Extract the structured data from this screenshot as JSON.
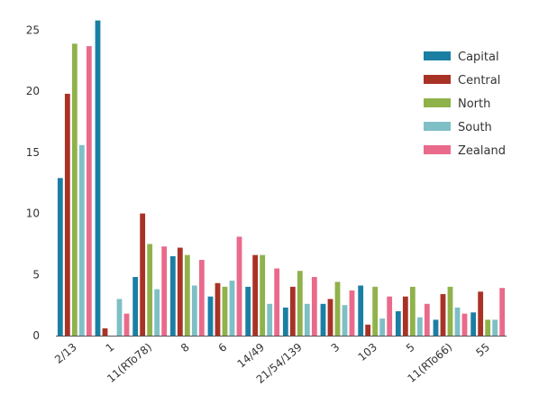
{
  "chart_data": {
    "type": "bar",
    "categories": [
      "2/13",
      "1",
      "11(RTo78)",
      "8",
      "6",
      "14/49",
      "21/54/139",
      "3",
      "103",
      "5",
      "11(RTo66)",
      "55"
    ],
    "series": [
      {
        "name": "Capital",
        "color": "#1a7fa3",
        "values": [
          12.9,
          25.8,
          4.8,
          6.5,
          3.2,
          4.0,
          2.3,
          2.6,
          4.1,
          2.0,
          1.3,
          1.9
        ]
      },
      {
        "name": "Central",
        "color": "#a93226",
        "values": [
          19.8,
          0.6,
          10.0,
          7.2,
          4.3,
          6.6,
          4.0,
          3.0,
          0.9,
          3.2,
          3.4,
          3.6
        ]
      },
      {
        "name": "North",
        "color": "#8fb24b",
        "values": [
          23.9,
          0,
          7.5,
          6.6,
          4.0,
          6.6,
          5.3,
          4.4,
          4.0,
          4.0,
          4.0,
          1.3
        ]
      },
      {
        "name": "South",
        "color": "#7fbfc6",
        "values": [
          15.6,
          3.0,
          3.8,
          4.1,
          4.5,
          2.6,
          2.6,
          2.5,
          1.4,
          1.5,
          2.3,
          1.3
        ]
      },
      {
        "name": "Zealand",
        "color": "#ea6a8c",
        "values": [
          23.7,
          1.8,
          7.3,
          6.2,
          8.1,
          5.5,
          4.8,
          3.7,
          3.2,
          2.6,
          1.8,
          3.9
        ]
      }
    ],
    "y_ticks": [
      0,
      5,
      10,
      15,
      20,
      25
    ],
    "ylim": [
      0,
      26
    ],
    "grid": false,
    "legend_position": "top-right",
    "xlabel": "",
    "ylabel": "",
    "title": ""
  }
}
